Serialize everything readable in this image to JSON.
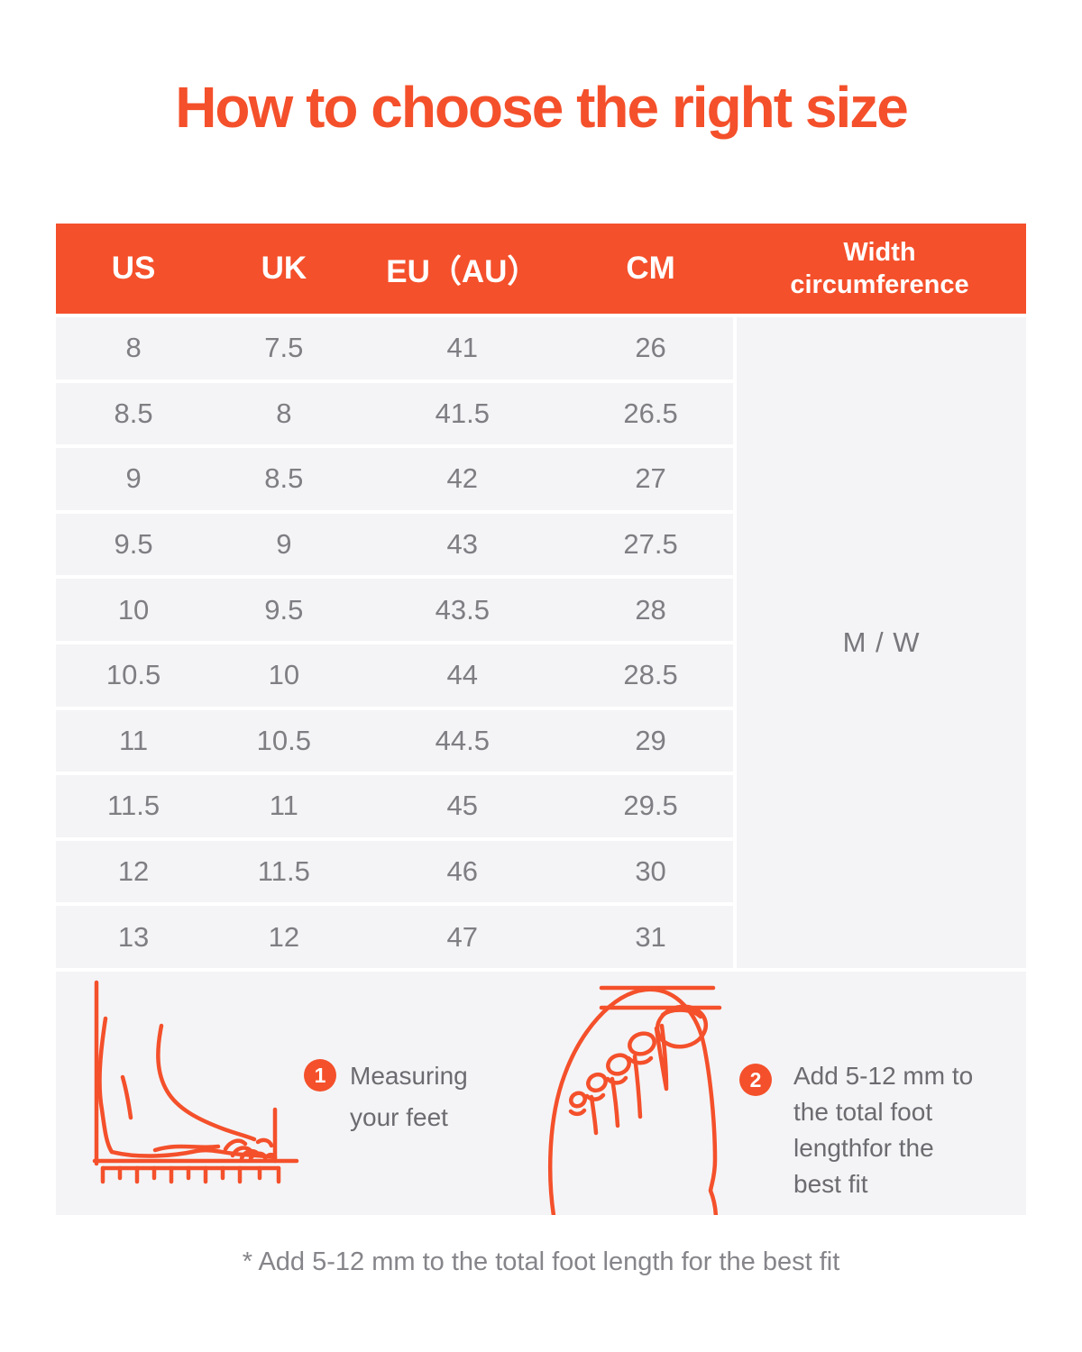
{
  "page": {
    "title": "How to choose the right size",
    "footnote": "* Add 5-12 mm to the total foot length for the best fit"
  },
  "colors": {
    "accent_orange": "#F4502B",
    "panel_gray": "#F4F4F6",
    "number_text_gray": "#7E7E83",
    "step_text_gray": "#6B6B70",
    "header_text": "#FFFFFF"
  },
  "table": {
    "headers": [
      "US",
      "UK",
      "EU（AU）",
      "CM",
      "Width\ncircumference"
    ],
    "rows": [
      [
        "8",
        "7.5",
        "41",
        "26"
      ],
      [
        "8.5",
        "8",
        "41.5",
        "26.5"
      ],
      [
        "9",
        "8.5",
        "42",
        "27"
      ],
      [
        "9.5",
        "9",
        "43",
        "27.5"
      ],
      [
        "10",
        "9.5",
        "43.5",
        "28"
      ],
      [
        "10.5",
        "10",
        "44",
        "28.5"
      ],
      [
        "11",
        "10.5",
        "44.5",
        "29"
      ],
      [
        "11.5",
        "11",
        "45",
        "29.5"
      ],
      [
        "12",
        "11.5",
        "46",
        "30"
      ],
      [
        "13",
        "12",
        "47",
        "31"
      ]
    ],
    "width_circumference_value": "M / W"
  },
  "steps": [
    {
      "number": "1",
      "icon": "side-foot-illustration",
      "text": "Measuring\nyour feet"
    },
    {
      "number": "2",
      "icon": "top-foot-illustration",
      "text": "Add 5-12 mm to\nthe total foot\nlengthfor the\nbest fit"
    }
  ],
  "chart_data": {
    "type": "table",
    "title": "How to choose the right size",
    "columns": [
      "US",
      "UK",
      "EU（AU）",
      "CM",
      "Width circumference"
    ],
    "rows": [
      [
        "8",
        "7.5",
        "41",
        "26",
        "M / W"
      ],
      [
        "8.5",
        "8",
        "41.5",
        "26.5",
        "M / W"
      ],
      [
        "9",
        "8.5",
        "42",
        "27",
        "M / W"
      ],
      [
        "9.5",
        "9",
        "43",
        "27.5",
        "M / W"
      ],
      [
        "10",
        "9.5",
        "43.5",
        "28",
        "M / W"
      ],
      [
        "10.5",
        "10",
        "44",
        "28.5",
        "M / W"
      ],
      [
        "11",
        "10.5",
        "44.5",
        "29",
        "M / W"
      ],
      [
        "11.5",
        "11",
        "45",
        "29.5",
        "M / W"
      ],
      [
        "12",
        "11.5",
        "46",
        "30",
        "M / W"
      ],
      [
        "13",
        "12",
        "47",
        "31",
        "M / W"
      ]
    ],
    "notes": "Width circumference column value M / W is merged across all rows"
  }
}
